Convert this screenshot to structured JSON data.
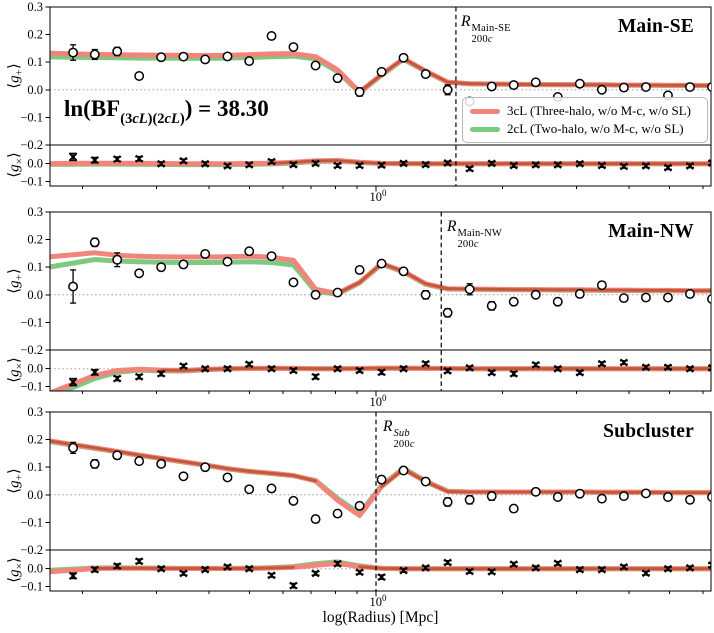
{
  "figure": {
    "annotation": {
      "parts": [
        {
          "t": "ln(BF",
          "style": "base"
        },
        {
          "t": "(3",
          "style": "sub"
        },
        {
          "t": "cL",
          "style": "subit"
        },
        {
          "t": ")(2",
          "style": "sub"
        },
        {
          "t": "cL",
          "style": "subit"
        },
        {
          "t": ")",
          "style": "sub"
        },
        {
          "t": ") = 38.30",
          "style": "base"
        }
      ]
    },
    "xlabel": "log(Radius) [Mpc]",
    "xtick": {
      "mantissa": "10",
      "exponent": "0"
    },
    "ylabel_gplus": {
      "pre": "⟨",
      "sym": "g",
      "sub": "+",
      "post": "⟩"
    },
    "ylabel_gcross": {
      "pre": "⟨",
      "sym": "g",
      "sub": "×",
      "post": "⟩"
    },
    "colors": {
      "model_3cL": "#f1857c",
      "model_2cL": "#7ec87f",
      "model_overlap": "#c2583a",
      "marker": "#000000",
      "zero_line": "#999999",
      "dashed_line": "#000000"
    }
  },
  "legend": {
    "items": [
      {
        "label": "3cL (Three-halo, w/o M-c, w/o SL)",
        "color": "#f1857c"
      },
      {
        "label": "2cL (Two-halo, w/o M-c, w/o SL)",
        "color": "#7ec87f"
      }
    ]
  },
  "chart_data": {
    "type": "line",
    "annotation_text": "ln(BF_(3cL)(2cL)) = 38.30",
    "x_axis": {
      "label": "log(Radius) [Mpc]",
      "scale": "log",
      "xlim": [
        0.167,
        6.31
      ],
      "xticks_major": [
        1
      ],
      "xticks_minor": [
        0.2,
        0.3,
        0.4,
        0.5,
        0.6,
        0.7,
        0.8,
        0.9,
        2,
        3,
        4,
        5,
        6
      ]
    },
    "y_axis_gplus": {
      "ylim": [
        -0.2,
        0.3
      ],
      "yticks": [
        0.3,
        0.2,
        0.1,
        0.0,
        -0.1,
        -0.2
      ]
    },
    "y_axis_gcross": {
      "ylim": [
        -0.125,
        0.105
      ],
      "yticks": [
        0.0,
        -0.1
      ]
    },
    "r": [
      0.19,
      0.214,
      0.242,
      0.273,
      0.308,
      0.348,
      0.392,
      0.443,
      0.499,
      0.564,
      0.636,
      0.718,
      0.81,
      0.914,
      1.031,
      1.163,
      1.313,
      1.481,
      1.671,
      1.886,
      2.128,
      2.401,
      2.709,
      3.057,
      3.45,
      3.892,
      4.392,
      4.956,
      5.592,
      6.31
    ],
    "panels": [
      {
        "title": "Main-SE",
        "r200c": 1.55,
        "r_label": {
          "base": "R",
          "sub_num": "200",
          "sub_it": "c",
          "sup": "Main-SE",
          "sup_italic": false
        },
        "gplus": {
          "y": [
            0.135,
            0.128,
            0.139,
            0.05,
            0.118,
            0.12,
            0.11,
            0.121,
            0.104,
            0.195,
            0.155,
            0.088,
            0.042,
            -0.008,
            0.065,
            0.116,
            0.057,
            0.0,
            -0.042,
            0.012,
            0.017,
            0.027,
            -0.026,
            0.022,
            0.0,
            0.008,
            0.01,
            -0.02,
            0.01,
            0.01
          ],
          "yerr": [
            0.028,
            0.018,
            0.015,
            0.012,
            0.01,
            0.01,
            0.01,
            0.008,
            0.01,
            0.012,
            0.01,
            0.01,
            0.012,
            0.015,
            0.012,
            0.01,
            0.012,
            0.018,
            0.012,
            0.01,
            0.01,
            0.01,
            0.01,
            0.01,
            0.01,
            0.01,
            0.01,
            0.01,
            0.01,
            0.01
          ]
        },
        "gcross": {
          "y": [
            0.038,
            0.02,
            0.026,
            0.028,
            0.0,
            0.016,
            0.0,
            -0.012,
            -0.006,
            0.012,
            -0.005,
            0.002,
            -0.01,
            -0.01,
            -0.008,
            0.002,
            -0.005,
            0.004,
            -0.028,
            0.002,
            -0.01,
            -0.006,
            -0.006,
            0.0,
            -0.01,
            -0.015,
            -0.012,
            -0.022,
            -0.012,
            0.004
          ],
          "yerr": [
            0.02,
            0.015,
            0.012,
            0.012,
            0.01,
            0.01,
            0.01,
            0.01,
            0.01,
            0.01,
            0.01,
            0.01,
            0.01,
            0.01,
            0.01,
            0.01,
            0.01,
            0.01,
            0.01,
            0.01,
            0.01,
            0.01,
            0.01,
            0.01,
            0.01,
            0.01,
            0.01,
            0.01,
            0.01,
            0.01
          ]
        },
        "model_3cL": {
          "gplus": [
            0.13,
            0.128,
            0.127,
            0.126,
            0.125,
            0.125,
            0.124,
            0.125,
            0.127,
            0.13,
            0.131,
            0.12,
            0.072,
            -0.008,
            0.055,
            0.113,
            0.068,
            0.028,
            0.022,
            0.021,
            0.02,
            0.019,
            0.019,
            0.018,
            0.018,
            0.017,
            0.017,
            0.016,
            0.016,
            0.015
          ],
          "gcross": [
            0.002,
            0.003,
            0.003,
            0.002,
            0.001,
            0.0,
            0.0,
            0.0,
            0.001,
            0.003,
            0.008,
            0.016,
            0.018,
            0.008,
            0.002,
            0.001,
            0.0,
            0.0,
            0.0,
            0.0,
            0.0,
            0.0,
            0.0,
            0.0,
            0.0,
            0.0,
            0.0,
            0.0,
            0.0,
            0.0
          ]
        },
        "model_2cL": {
          "gplus": [
            0.118,
            0.117,
            0.116,
            0.115,
            0.115,
            0.114,
            0.114,
            0.115,
            0.117,
            0.12,
            0.122,
            0.112,
            0.066,
            -0.01,
            0.053,
            0.111,
            0.066,
            0.027,
            0.022,
            0.021,
            0.02,
            0.019,
            0.019,
            0.018,
            0.018,
            0.017,
            0.017,
            0.016,
            0.016,
            0.015
          ],
          "gcross": [
            -0.003,
            -0.002,
            -0.002,
            -0.003,
            -0.004,
            -0.005,
            -0.005,
            -0.005,
            -0.004,
            -0.001,
            0.004,
            0.013,
            0.016,
            0.007,
            0.001,
            0.0,
            0.0,
            0.0,
            0.0,
            0.0,
            0.0,
            0.0,
            0.0,
            0.0,
            0.0,
            0.0,
            0.0,
            0.0,
            0.0,
            0.0
          ]
        }
      },
      {
        "title": "Main-NW",
        "r200c": 1.43,
        "r_label": {
          "base": "R",
          "sub_num": "200",
          "sub_it": "c",
          "sup": "Main-NW",
          "sup_italic": false
        },
        "gplus": {
          "y": [
            0.03,
            0.19,
            0.127,
            0.078,
            0.1,
            0.11,
            0.148,
            0.12,
            0.158,
            0.14,
            0.045,
            0.0,
            0.008,
            0.09,
            0.113,
            0.085,
            0.0,
            -0.065,
            0.02,
            -0.04,
            -0.025,
            0.0,
            -0.025,
            0.003,
            0.035,
            -0.012,
            -0.01,
            -0.01,
            0.003,
            -0.015
          ],
          "yerr": [
            0.06,
            0.015,
            0.025,
            0.012,
            0.012,
            0.012,
            0.012,
            0.01,
            0.01,
            0.012,
            0.01,
            0.012,
            0.012,
            0.012,
            0.01,
            0.012,
            0.015,
            0.015,
            0.02,
            0.015,
            0.012,
            0.012,
            0.012,
            0.01,
            0.01,
            0.01,
            0.01,
            0.01,
            0.01,
            0.012
          ]
        },
        "gcross": {
          "y": [
            -0.075,
            -0.02,
            -0.055,
            -0.045,
            -0.028,
            0.015,
            0.0,
            0.0,
            0.025,
            0.0,
            -0.01,
            -0.045,
            0.0,
            -0.01,
            -0.02,
            0.0,
            0.028,
            -0.012,
            0.005,
            -0.022,
            -0.028,
            0.022,
            0.0,
            -0.022,
            0.028,
            0.035,
            0.008,
            0.008,
            0.0,
            0.005
          ],
          "yerr": [
            0.02,
            0.015,
            0.012,
            0.012,
            0.012,
            0.01,
            0.01,
            0.01,
            0.01,
            0.01,
            0.01,
            0.012,
            0.01,
            0.01,
            0.012,
            0.01,
            0.01,
            0.01,
            0.01,
            0.01,
            0.012,
            0.01,
            0.01,
            0.01,
            0.01,
            0.01,
            0.01,
            0.01,
            0.01,
            0.01
          ]
        },
        "model_3cL": {
          "gplus": [
            0.145,
            0.152,
            0.143,
            0.14,
            0.138,
            0.137,
            0.137,
            0.138,
            0.14,
            0.136,
            0.125,
            0.02,
            0.005,
            0.045,
            0.113,
            0.085,
            0.04,
            0.022,
            0.021,
            0.02,
            0.019,
            0.019,
            0.018,
            0.018,
            0.017,
            0.017,
            0.016,
            0.016,
            0.015,
            0.015
          ],
          "gcross": [
            -0.085,
            -0.038,
            -0.01,
            -0.003,
            -0.008,
            -0.01,
            -0.004,
            0.0,
            0.002,
            0.003,
            0.002,
            0.0,
            0.0,
            0.001,
            0.003,
            0.003,
            0.002,
            0.001,
            0.0,
            0.0,
            0.0,
            0.0,
            0.0,
            0.0,
            0.0,
            0.0,
            0.0,
            0.0,
            0.0,
            0.0
          ]
        },
        "model_2cL": {
          "gplus": [
            0.115,
            0.128,
            0.122,
            0.12,
            0.118,
            0.117,
            0.117,
            0.118,
            0.12,
            0.117,
            0.108,
            0.012,
            0.002,
            0.043,
            0.111,
            0.083,
            0.038,
            0.021,
            0.02,
            0.019,
            0.018,
            0.018,
            0.017,
            0.017,
            0.016,
            0.016,
            0.015,
            0.015,
            0.014,
            0.014
          ],
          "gcross": [
            -0.105,
            -0.055,
            -0.02,
            -0.008,
            -0.012,
            -0.013,
            -0.006,
            -0.001,
            0.001,
            0.002,
            0.001,
            0.0,
            0.0,
            0.001,
            0.003,
            0.003,
            0.002,
            0.001,
            0.0,
            0.0,
            0.0,
            0.0,
            0.0,
            0.0,
            0.0,
            0.0,
            0.0,
            0.0,
            0.0,
            0.0
          ]
        }
      },
      {
        "title": "Subcluster",
        "r200c": 1.0,
        "r_label": {
          "base": "R",
          "sub_num": "200",
          "sub_it": "c",
          "sup": "Sub",
          "sup_italic": true
        },
        "gplus": {
          "y": [
            0.17,
            0.112,
            0.143,
            0.122,
            0.112,
            0.067,
            0.1,
            0.063,
            0.02,
            0.023,
            -0.022,
            -0.088,
            -0.068,
            -0.04,
            0.055,
            0.088,
            0.048,
            -0.026,
            -0.018,
            -0.005,
            -0.05,
            0.011,
            -0.008,
            0.004,
            -0.014,
            -0.005,
            0.005,
            -0.008,
            -0.018,
            -0.008
          ],
          "yerr": [
            0.02,
            0.015,
            0.012,
            0.01,
            0.01,
            0.01,
            0.01,
            0.01,
            0.01,
            0.01,
            0.01,
            0.012,
            0.012,
            0.012,
            0.012,
            0.01,
            0.012,
            0.015,
            0.015,
            0.015,
            0.012,
            0.012,
            0.01,
            0.01,
            0.01,
            0.01,
            0.01,
            0.01,
            0.012,
            0.01
          ]
        },
        "gcross": {
          "y": [
            -0.04,
            -0.005,
            0.015,
            0.042,
            0.0,
            -0.026,
            -0.005,
            0.01,
            0.0,
            -0.037,
            -0.095,
            -0.026,
            0.028,
            -0.02,
            -0.047,
            -0.01,
            0.005,
            0.035,
            -0.015,
            -0.017,
            0.025,
            0.005,
            0.03,
            -0.005,
            -0.005,
            0.01,
            -0.025,
            0.0,
            0.005,
            0.02
          ],
          "yerr": [
            0.015,
            0.012,
            0.012,
            0.012,
            0.01,
            0.01,
            0.01,
            0.01,
            0.01,
            0.01,
            0.012,
            0.01,
            0.012,
            0.01,
            0.012,
            0.01,
            0.01,
            0.01,
            0.01,
            0.01,
            0.01,
            0.01,
            0.01,
            0.01,
            0.01,
            0.01,
            0.01,
            0.01,
            0.01,
            0.01
          ]
        },
        "model_3cL": {
          "gplus": [
            0.182,
            0.17,
            0.157,
            0.144,
            0.132,
            0.12,
            0.108,
            0.095,
            0.085,
            0.078,
            0.07,
            0.05,
            -0.02,
            -0.075,
            0.03,
            0.093,
            0.048,
            0.012,
            0.01,
            0.01,
            0.01,
            0.01,
            0.01,
            0.01,
            0.009,
            0.009,
            0.009,
            0.008,
            0.008,
            0.008
          ],
          "gcross": [
            -0.008,
            0.001,
            0.003,
            0.003,
            0.002,
            0.001,
            0.001,
            0.001,
            0.002,
            0.004,
            0.008,
            0.02,
            0.03,
            0.012,
            0.002,
            0.0,
            0.0,
            0.0,
            0.0,
            0.0,
            0.0,
            0.0,
            0.0,
            0.0,
            0.0,
            0.0,
            0.0,
            0.0,
            0.0,
            0.0
          ]
        },
        "model_2cL": {
          "gplus": [
            0.18,
            0.168,
            0.156,
            0.143,
            0.131,
            0.119,
            0.107,
            0.094,
            0.084,
            0.077,
            0.069,
            0.052,
            -0.013,
            -0.068,
            0.034,
            0.096,
            0.05,
            0.013,
            0.01,
            0.01,
            0.01,
            0.01,
            0.01,
            0.01,
            0.009,
            0.009,
            0.009,
            0.008,
            0.008,
            0.008
          ],
          "gcross": [
            -0.002,
            0.004,
            0.005,
            0.004,
            0.003,
            0.002,
            0.002,
            0.002,
            0.003,
            0.006,
            0.012,
            0.028,
            0.038,
            0.016,
            0.003,
            0.0,
            0.0,
            0.0,
            0.0,
            0.0,
            0.0,
            0.0,
            0.0,
            0.0,
            0.0,
            0.0,
            0.0,
            0.0,
            0.0,
            0.0
          ]
        }
      }
    ]
  }
}
